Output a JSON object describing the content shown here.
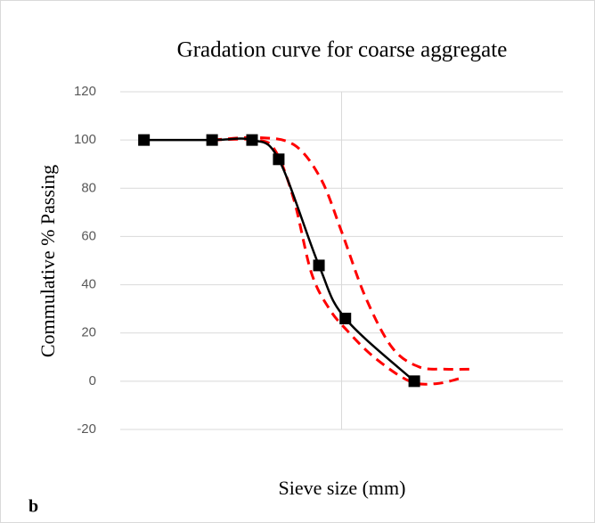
{
  "chart_data": {
    "type": "line",
    "title": "Gradation curve for coarse aggregate",
    "xlabel": "Sieve size (mm)",
    "ylabel": "Commulative % Passing",
    "panel_label": "b",
    "xscale": "log",
    "xlim": [
      1,
      100
    ],
    "xticks": [
      10
    ],
    "ylim": [
      -20,
      120
    ],
    "yticks": [
      -20,
      0,
      20,
      40,
      60,
      80,
      100,
      120
    ],
    "grid": true,
    "series": [
      {
        "color": "#ff0000",
        "dashed": true,
        "marker": false,
        "x": [
          2.6,
          4.2,
          6.1,
          8.05,
          10,
          12.8,
          16.9,
          22.3,
          29.4,
          38.8
        ],
        "values": [
          100,
          101,
          98,
          84,
          62,
          35,
          14,
          6,
          5,
          5
        ]
      },
      {
        "color": "#ff0000",
        "dashed": true,
        "marker": false,
        "x": [
          2.6,
          4.2,
          5.06,
          6.1,
          7.3,
          8.8,
          10.6,
          14.0,
          20.3,
          26.8,
          33.8
        ],
        "values": [
          100,
          100,
          95,
          75,
          45,
          30,
          21,
          10,
          0,
          -1,
          1
        ]
      },
      {
        "color": "#000000",
        "dashed": false,
        "marker": true,
        "x": [
          1.28,
          2.6,
          3.94,
          5.2,
          7.9,
          10.4,
          21.3
        ],
        "values": [
          100,
          100,
          100,
          92,
          48,
          26,
          0
        ]
      }
    ]
  }
}
